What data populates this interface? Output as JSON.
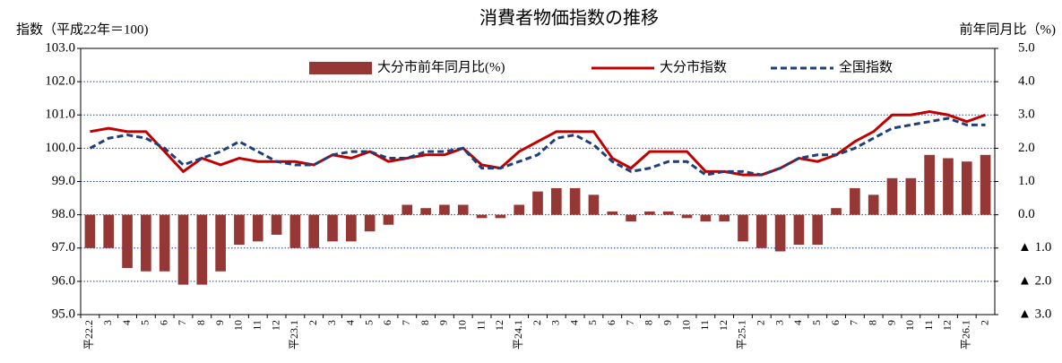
{
  "chart_data": {
    "type": "bar-line",
    "title": "消費者物価指数の推移",
    "y_label": "指数（平成22年＝100)",
    "y2_label": "前年同月比（%)",
    "categories": [
      "平22.2",
      "3",
      "4",
      "5",
      "6",
      "7",
      "8",
      "9",
      "10",
      "11",
      "12",
      "平23.1",
      "2",
      "3",
      "4",
      "5",
      "6",
      "7",
      "8",
      "9",
      "10",
      "11",
      "12",
      "平24.1",
      "2",
      "3",
      "4",
      "5",
      "6",
      "7",
      "8",
      "9",
      "10",
      "11",
      "12",
      "平25.1",
      "2",
      "3",
      "4",
      "5",
      "6",
      "7",
      "8",
      "9",
      "10",
      "11",
      "12",
      "平26.1",
      "2"
    ],
    "series": [
      {
        "name": "大分市前年同月比(%)",
        "type": "bar",
        "axis": "y2",
        "color": "#953735",
        "values": [
          -1.0,
          -1.0,
          -1.6,
          -1.7,
          -1.7,
          -2.1,
          -2.1,
          -1.7,
          -0.9,
          -0.8,
          -0.6,
          -1.0,
          -1.0,
          -0.8,
          -0.8,
          -0.5,
          -0.3,
          0.3,
          0.2,
          0.3,
          0.3,
          -0.1,
          -0.1,
          0.3,
          0.7,
          0.8,
          0.8,
          0.6,
          0.1,
          -0.2,
          0.1,
          0.1,
          -0.1,
          -0.2,
          -0.2,
          -0.8,
          -1.0,
          -1.1,
          -0.9,
          -0.9,
          0.2,
          0.8,
          0.6,
          1.1,
          1.1,
          1.8,
          1.7,
          1.6,
          1.8
        ]
      },
      {
        "name": "大分市指数",
        "type": "line",
        "axis": "y",
        "color": "#c00000",
        "dash": false,
        "values": [
          100.5,
          100.6,
          100.5,
          100.5,
          99.9,
          99.3,
          99.7,
          99.5,
          99.7,
          99.6,
          99.6,
          99.6,
          99.5,
          99.8,
          99.7,
          99.9,
          99.6,
          99.7,
          99.8,
          99.8,
          100.0,
          99.5,
          99.4,
          99.9,
          100.2,
          100.5,
          100.5,
          100.5,
          99.7,
          99.4,
          99.9,
          99.9,
          99.9,
          99.3,
          99.3,
          99.2,
          99.2,
          99.4,
          99.7,
          99.6,
          99.8,
          100.2,
          100.5,
          101.0,
          101.0,
          101.1,
          101.0,
          100.8,
          101.0
        ]
      },
      {
        "name": "全国指数",
        "type": "line",
        "axis": "y",
        "color": "#1f3f7a",
        "dash": true,
        "values": [
          100.0,
          100.3,
          100.4,
          100.3,
          100.0,
          99.5,
          99.7,
          99.9,
          100.2,
          99.9,
          99.6,
          99.5,
          99.5,
          99.8,
          99.9,
          99.9,
          99.7,
          99.7,
          99.9,
          99.9,
          100.0,
          99.4,
          99.4,
          99.6,
          99.8,
          100.3,
          100.4,
          100.1,
          99.6,
          99.3,
          99.4,
          99.6,
          99.6,
          99.2,
          99.3,
          99.3,
          99.2,
          99.4,
          99.7,
          99.8,
          99.8,
          100.0,
          100.3,
          100.6,
          100.7,
          100.8,
          100.9,
          100.7,
          100.7
        ]
      }
    ],
    "ylim": [
      95,
      103
    ],
    "yticks": [
      {
        "value": 95,
        "label": "95.0"
      },
      {
        "value": 96,
        "label": "96.0"
      },
      {
        "value": 97,
        "label": "97.0"
      },
      {
        "value": 98,
        "label": "98.0"
      },
      {
        "value": 99,
        "label": "99.0"
      },
      {
        "value": 100,
        "label": "100.0"
      },
      {
        "value": 101,
        "label": "101.0"
      },
      {
        "value": 102,
        "label": "102.0"
      },
      {
        "value": 103,
        "label": "103.0"
      }
    ],
    "y2lim": [
      -3,
      5
    ],
    "y2ticks": [
      {
        "value": -3,
        "label": "▲ 3.0"
      },
      {
        "value": -2,
        "label": "▲ 2.0"
      },
      {
        "value": -1,
        "label": "▲ 1.0"
      },
      {
        "value": 0,
        "label": "0.0"
      },
      {
        "value": 1,
        "label": "1.0"
      },
      {
        "value": 2,
        "label": "2.0"
      },
      {
        "value": 3,
        "label": "3.0"
      },
      {
        "value": 4,
        "label": "4.0"
      },
      {
        "value": 5,
        "label": "5.0"
      }
    ],
    "grid": true,
    "grid_color": "#1f3f9a",
    "legend": "top"
  }
}
